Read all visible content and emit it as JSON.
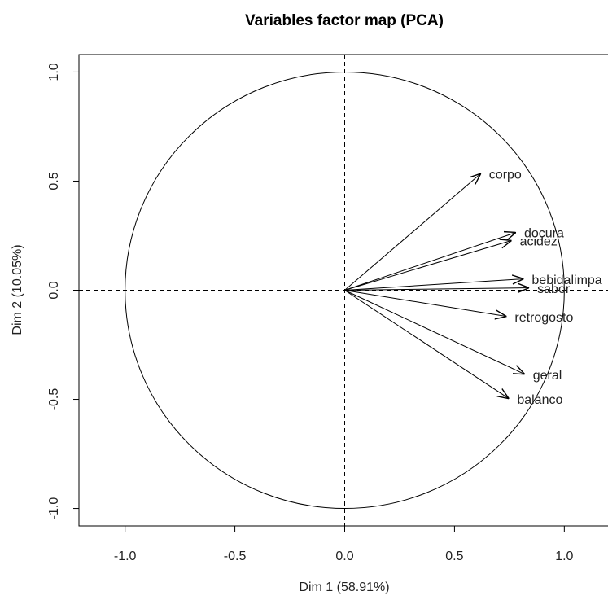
{
  "chart_data": {
    "type": "arrows",
    "title": "Variables factor map (PCA)",
    "x_label": "Dim 1 (58.91%)",
    "y_label": "Dim 2 (10.05%)",
    "labels": [
      "corpo",
      "docura",
      "acidez",
      "bebidalimpa",
      "sabor",
      "retrogosto",
      "geral",
      "balanco"
    ],
    "x": [
      0.62,
      0.78,
      0.76,
      0.815,
      0.84,
      0.737,
      0.82,
      0.748
    ],
    "values": [
      0.535,
      0.265,
      0.228,
      0.052,
      0.011,
      -0.12,
      -0.385,
      -0.497
    ],
    "xlim": [
      -1.21,
      1.21
    ],
    "ylim": [
      -1.08,
      1.08
    ],
    "xticks": [
      {
        "value": -1,
        "label": "-1.0"
      },
      {
        "value": -0.5,
        "label": "-0.5"
      },
      {
        "value": 0,
        "label": "0.0"
      },
      {
        "value": 0.5,
        "label": "0.5"
      },
      {
        "value": 1,
        "label": "1.0"
      }
    ],
    "yticks": [
      {
        "value": -1,
        "label": "-1.0"
      },
      {
        "value": -0.5,
        "label": "-0.5"
      },
      {
        "value": 0,
        "label": "0.0"
      },
      {
        "value": 0.5,
        "label": "0.5"
      },
      {
        "value": 1,
        "label": "1.0"
      }
    ],
    "correlation_circle": true,
    "reference_lines": true,
    "color": "#000000"
  }
}
